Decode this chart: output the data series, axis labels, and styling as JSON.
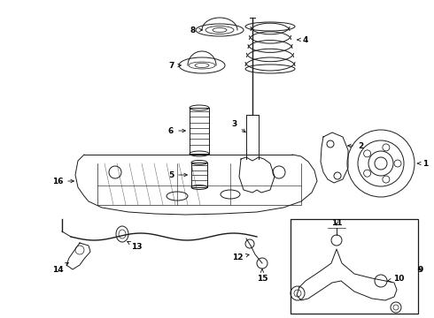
{
  "bg_color": "#ffffff",
  "line_color": "#1a1a1a",
  "figsize": [
    4.9,
    3.6
  ],
  "dpi": 100,
  "xlim": [
    0,
    490
  ],
  "ylim": [
    360,
    0
  ]
}
